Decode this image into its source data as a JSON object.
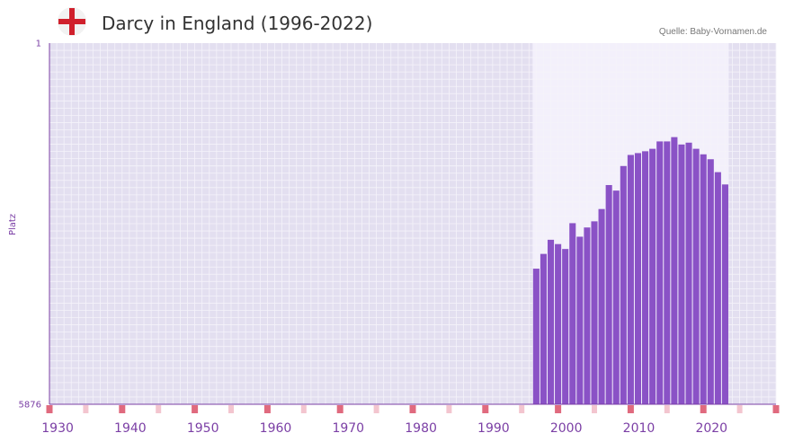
{
  "header": {
    "title": "Darcy in England (1996-2022)",
    "source": "Quelle: Baby-Vornamen.de",
    "flag_icon": "england-flag-icon"
  },
  "chart_data": {
    "type": "bar",
    "title": "Darcy in England (1996-2022)",
    "xlabel": "",
    "ylabel": "Platz",
    "y_inverted": true,
    "ylim": [
      1,
      5876
    ],
    "y_ticks": [
      "1",
      "5876"
    ],
    "xlim": [
      1929,
      2029
    ],
    "x_ticks": [
      1930,
      1940,
      1950,
      1960,
      1970,
      1980,
      1990,
      2000,
      2010,
      2020
    ],
    "highlight_range": [
      1996,
      2022
    ],
    "x": [
      1996,
      1997,
      1998,
      1999,
      2000,
      2001,
      2002,
      2003,
      2004,
      2005,
      2006,
      2007,
      2008,
      2009,
      2010,
      2011,
      2012,
      2013,
      2014,
      2015,
      2016,
      2017,
      2018,
      2019,
      2020,
      2021,
      2022
    ],
    "values": [
      3670,
      3430,
      3200,
      3270,
      3350,
      2930,
      3150,
      3000,
      2900,
      2700,
      2310,
      2400,
      2000,
      1820,
      1790,
      1760,
      1720,
      1600,
      1600,
      1530,
      1650,
      1620,
      1720,
      1810,
      1890,
      2100,
      2300
    ],
    "markers": {
      "strong_years": [
        1929,
        1939,
        1949,
        1959,
        1969,
        1979,
        1989,
        1999,
        2009,
        2019,
        2029
      ],
      "light_years": [
        1934,
        1944,
        1954,
        1964,
        1974,
        1984,
        1994,
        2004,
        2014,
        2024
      ],
      "strong_color": "#e06a7e",
      "light_color": "#f3c5cf"
    },
    "colors": {
      "bar": "#8a52c6",
      "plot_bg": "#e3dff0",
      "highlight_bg": "#f3f0fb",
      "grid": "#f5f3fa",
      "axis": "#7b3fa5",
      "tick_label": "#7b3fa5"
    }
  }
}
